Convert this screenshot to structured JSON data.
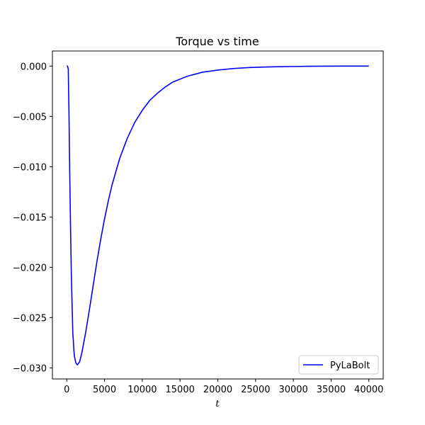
{
  "chart_data": {
    "type": "line",
    "title": "Torque vs time",
    "xlabel": "t",
    "ylabel": "",
    "xlim": [
      -1900,
      41900
    ],
    "ylim": [
      -0.0311,
      0.0015
    ],
    "xticks": [
      0,
      5000,
      10000,
      15000,
      20000,
      25000,
      30000,
      35000,
      40000
    ],
    "xtick_labels": [
      "0",
      "5000",
      "10000",
      "15000",
      "20000",
      "25000",
      "30000",
      "35000",
      "40000"
    ],
    "yticks": [
      0.0,
      -0.005,
      -0.01,
      -0.015,
      -0.02,
      -0.025,
      -0.03
    ],
    "ytick_labels": [
      "0.000",
      "−0.005",
      "−0.010",
      "−0.015",
      "−0.020",
      "−0.025",
      "−0.030"
    ],
    "grid": false,
    "legend": {
      "position": "lower-right"
    },
    "series": [
      {
        "name": "PyLaBolt",
        "color": "#0000ff",
        "x": [
          0,
          100,
          200,
          300,
          400,
          500,
          600,
          800,
          1000,
          1200,
          1400,
          1500,
          1700,
          2000,
          2500,
          3000,
          3500,
          4000,
          4500,
          5000,
          5500,
          6000,
          7000,
          8000,
          9000,
          10000,
          11000,
          12000,
          13000,
          14000,
          15000,
          16000,
          17000,
          18000,
          19000,
          20000,
          22000,
          24000,
          26000,
          28000,
          30000,
          32000,
          34000,
          36000,
          38000,
          40000
        ],
        "y": [
          0.0,
          0.0,
          -0.0003,
          -0.005,
          -0.011,
          -0.016,
          -0.0205,
          -0.0265,
          -0.0288,
          -0.0295,
          -0.0297,
          -0.0296,
          -0.0294,
          -0.0285,
          -0.0265,
          -0.0242,
          -0.0218,
          -0.0194,
          -0.0172,
          -0.0152,
          -0.0134,
          -0.0118,
          -0.0092,
          -0.0072,
          -0.0056,
          -0.0044,
          -0.0034,
          -0.0027,
          -0.0021,
          -0.0016,
          -0.0013,
          -0.001,
          -0.0008,
          -0.0006,
          -0.0005,
          -0.0004,
          -0.00025,
          -0.00015,
          -0.0001,
          -6e-05,
          -4e-05,
          -2e-05,
          -1e-05,
          0.0,
          0.0,
          0.0
        ]
      }
    ]
  }
}
